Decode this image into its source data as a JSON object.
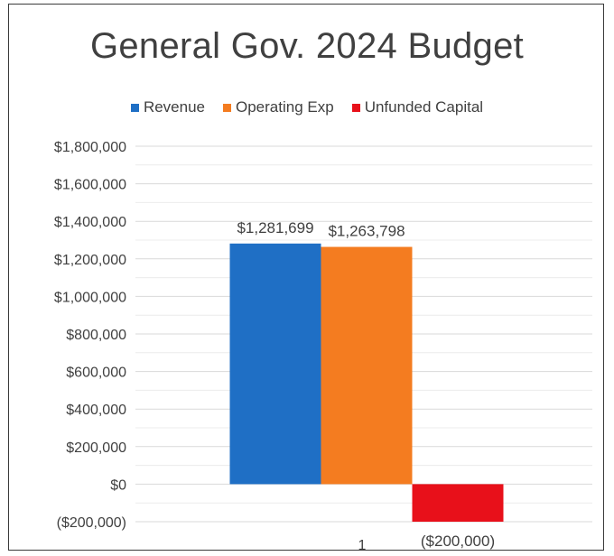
{
  "chart_data": {
    "type": "bar",
    "title": "General Gov. 2024 Budget",
    "categories": [
      "1"
    ],
    "series": [
      {
        "name": "Revenue",
        "values": [
          1281699
        ],
        "color": "#1f6fc5",
        "label": "$1,281,699"
      },
      {
        "name": "Operating Exp",
        "values": [
          1263798
        ],
        "color": "#f47c20",
        "label": "$1,263,798"
      },
      {
        "name": "Unfunded Capital",
        "values": [
          -200000
        ],
        "color": "#e8101a",
        "label": "($200,000)"
      }
    ],
    "ylim": [
      -200000,
      1800000
    ],
    "ytick_step": 200000,
    "ytick_labels": [
      "($200,000)",
      "$0",
      "$200,000",
      "$400,000",
      "$600,000",
      "$800,000",
      "$1,000,000",
      "$1,200,000",
      "$1,400,000",
      "$1,600,000",
      "$1,800,000"
    ],
    "grid": true,
    "legend": "top",
    "xlabel": "",
    "ylabel": ""
  }
}
